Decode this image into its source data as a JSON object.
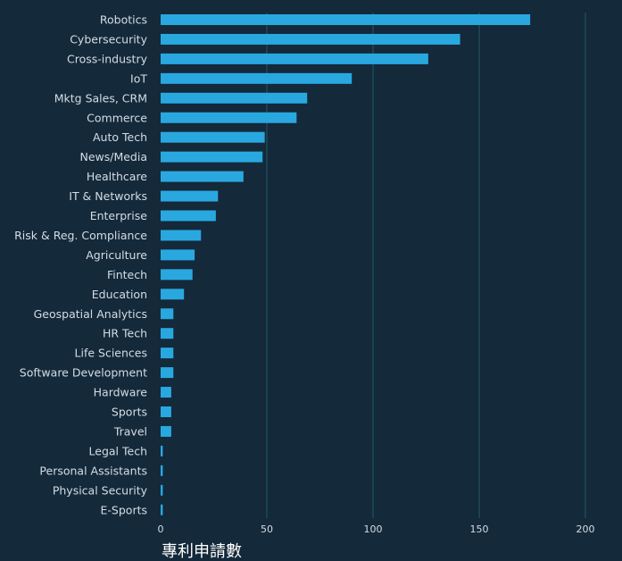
{
  "chart_data": {
    "type": "bar",
    "orientation": "horizontal",
    "categories": [
      "Robotics",
      "Cybersecurity",
      "Cross-industry",
      "IoT",
      "Mktg Sales, CRM",
      "Commerce",
      "Auto Tech",
      "News/Media",
      "Healthcare",
      "IT & Networks",
      "Enterprise",
      "Risk & Reg. Compliance",
      "Agriculture",
      "Fintech",
      "Education",
      "Geospatial Analytics",
      "HR Tech",
      "Life Sciences",
      "Software Development",
      "Hardware",
      "Sports",
      "Travel",
      "Legal Tech",
      "Personal Assistants",
      "Physical Security",
      "E-Sports"
    ],
    "values": [
      174,
      141,
      126,
      90,
      69,
      64,
      49,
      48,
      39,
      27,
      26,
      19,
      16,
      15,
      11,
      6,
      6,
      6,
      6,
      5,
      5,
      5,
      1,
      1,
      1,
      1
    ],
    "xlabel": "專利申請數",
    "ylabel": "",
    "xlim": [
      0,
      200
    ],
    "xticks": [
      0,
      50,
      100,
      150,
      200
    ],
    "grid": "vertical",
    "colors": {
      "bar": "#29a8e0",
      "grid": "#1f5a66",
      "background": "#14293a",
      "text": "#d4dde4"
    }
  }
}
